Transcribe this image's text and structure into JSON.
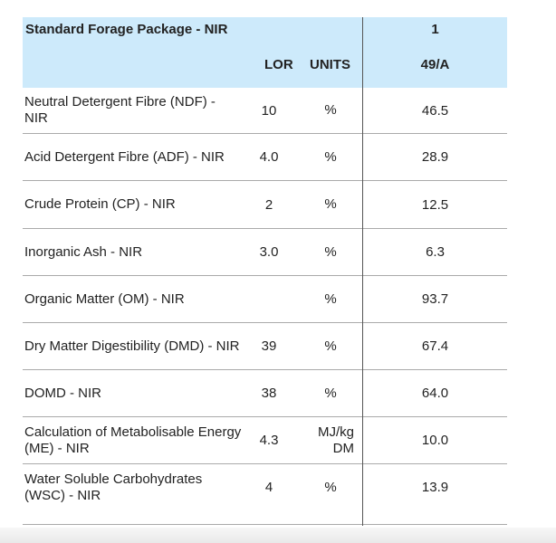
{
  "table": {
    "title": "Standard Forage Package - NIR",
    "sample_number": "1",
    "columns": {
      "lor": "LOR",
      "units": "UNITS",
      "sample_id": "49/A"
    },
    "header_color": "#cdeafb",
    "rows": [
      {
        "name": "Neutral Detergent Fibre (NDF) - NIR",
        "lor": "10",
        "units": "%",
        "value": "46.5"
      },
      {
        "name": "Acid Detergent Fibre (ADF) - NIR",
        "lor": "4.0",
        "units": "%",
        "value": "28.9"
      },
      {
        "name": "Crude Protein (CP) - NIR",
        "lor": "2",
        "units": "%",
        "value": "12.5"
      },
      {
        "name": "Inorganic Ash - NIR",
        "lor": "3.0",
        "units": "%",
        "value": "6.3"
      },
      {
        "name": "Organic Matter (OM) - NIR",
        "lor": "",
        "units": "%",
        "value": "93.7"
      },
      {
        "name": "Dry Matter Digestibility (DMD) - NIR",
        "lor": "39",
        "units": "%",
        "value": "67.4"
      },
      {
        "name": "DOMD - NIR",
        "lor": "38",
        "units": "%",
        "value": "64.0"
      },
      {
        "name": "Calculation of Metabolisable Energy (ME) - NIR",
        "lor": "4.3",
        "units": "MJ/kg DM",
        "value": "10.0"
      },
      {
        "name": "Water Soluble Carbohydrates (WSC) - NIR",
        "lor": "4",
        "units": "%",
        "value": "13.9"
      }
    ]
  }
}
